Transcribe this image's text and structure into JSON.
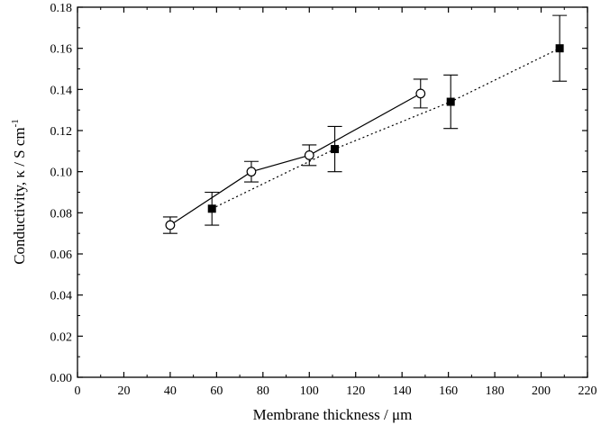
{
  "chart_data": {
    "type": "scatter",
    "xlabel": "Membrane thickness / μm",
    "ylabel": "Conductivity, κ / S cm",
    "ylabel_superscript": "-1",
    "xlim": [
      0,
      220
    ],
    "ylim": [
      0.0,
      0.18
    ],
    "x_ticks": [
      "0",
      "20",
      "40",
      "60",
      "80",
      "100",
      "120",
      "140",
      "160",
      "180",
      "200",
      "220"
    ],
    "y_ticks": [
      "0.00",
      "0.02",
      "0.04",
      "0.06",
      "0.08",
      "0.10",
      "0.12",
      "0.14",
      "0.16",
      "0.18"
    ],
    "grid": false,
    "legend": "none",
    "series": [
      {
        "marker": "open-circle",
        "line": "solid",
        "x": [
          40,
          75,
          100,
          148
        ],
        "y": [
          0.074,
          0.1,
          0.108,
          0.138
        ],
        "err": [
          0.004,
          0.005,
          0.005,
          0.007
        ]
      },
      {
        "marker": "filled-square",
        "line": "dotted",
        "x": [
          58,
          111,
          161,
          208
        ],
        "y": [
          0.082,
          0.111,
          0.134,
          0.16
        ],
        "err": [
          0.008,
          0.011,
          0.013,
          0.016
        ]
      }
    ]
  }
}
